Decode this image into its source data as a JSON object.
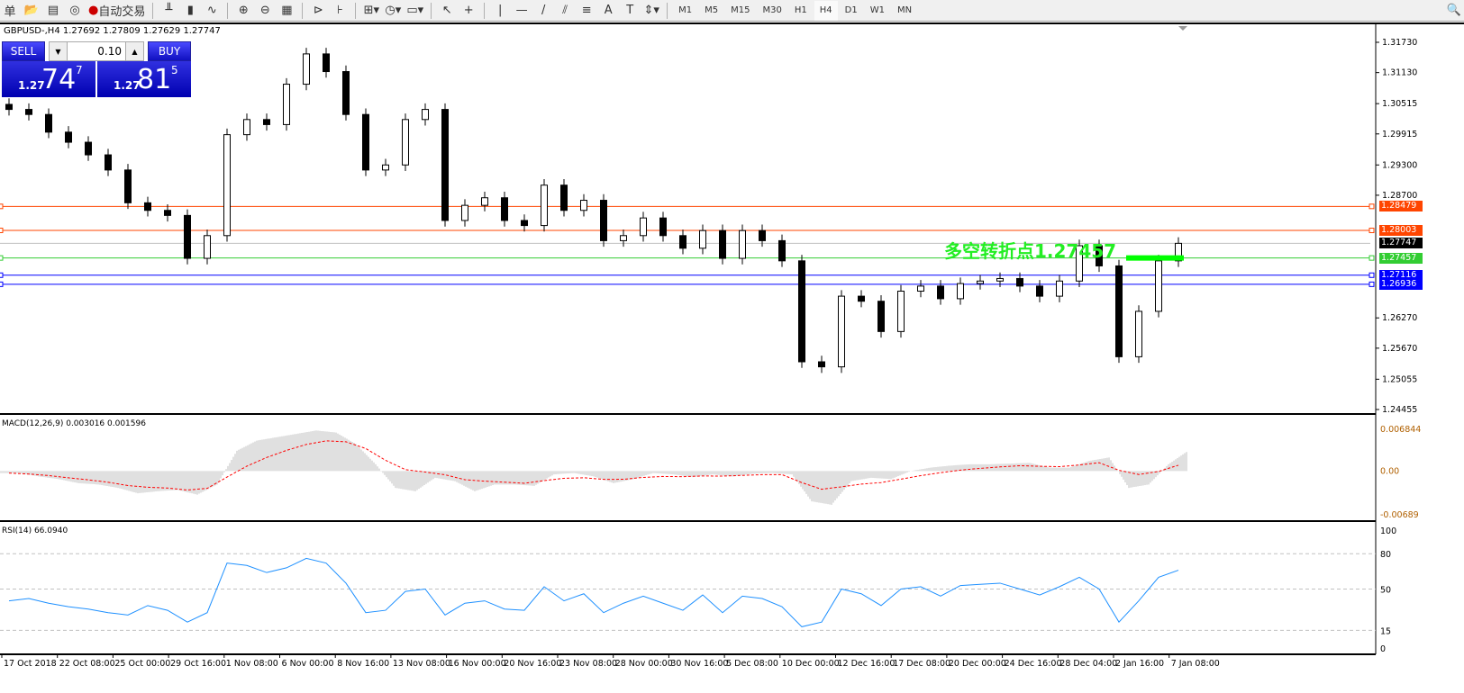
{
  "toolbar": {
    "items": [
      {
        "icon": "menu-char",
        "label": "单"
      },
      {
        "icon": "folder-icon"
      },
      {
        "icon": "terminal-icon"
      },
      {
        "icon": "signal-icon"
      },
      {
        "icon": "autotrading-icon",
        "label": "自动交易"
      },
      {
        "icon": "bar-chart-icon"
      },
      {
        "icon": "candlestick-icon"
      },
      {
        "icon": "line-chart-icon"
      },
      {
        "icon": "zoom-in-icon"
      },
      {
        "icon": "zoom-out-icon"
      },
      {
        "icon": "tile-windows-icon"
      },
      {
        "icon": "autoscroll-icon"
      },
      {
        "icon": "chart-shift-icon"
      },
      {
        "icon": "indicators-icon"
      },
      {
        "icon": "periods-clock-icon"
      },
      {
        "icon": "templates-icon"
      },
      {
        "icon": "cursor-icon"
      },
      {
        "icon": "crosshair-icon"
      },
      {
        "icon": "vertical-line-icon"
      },
      {
        "icon": "horizontal-line-icon"
      },
      {
        "icon": "trendline-icon"
      },
      {
        "icon": "equidistant-channel-icon"
      },
      {
        "icon": "fibonacci-icon"
      },
      {
        "icon": "text-icon"
      },
      {
        "icon": "text-label-icon"
      },
      {
        "icon": "arrows-icon"
      }
    ],
    "timeframes": [
      "M1",
      "M5",
      "M15",
      "M30",
      "H1",
      "H4",
      "D1",
      "W1",
      "MN"
    ],
    "active_timeframe": "H4",
    "search_icon": "search-icon"
  },
  "chart": {
    "title": "GBPUSD-,H4  1.27692 1.27809 1.27629 1.27747"
  },
  "one_click": {
    "sell": "SELL",
    "buy": "BUY",
    "lots": "0.10",
    "sell_price": {
      "a": "1.27",
      "b": "74",
      "c": "7"
    },
    "buy_price": {
      "a": "1.27",
      "b": "81",
      "c": "5"
    }
  },
  "pivot_text": "多空转折点1.27457",
  "colors": {
    "up_line": "#ff4500",
    "green": "#32cd32",
    "blue": "#0000ff",
    "bid": "#c0c0c0",
    "rsi": "#1e90ff",
    "macd_hist": "#c0c0c0",
    "macd_signal": "#ff0000"
  },
  "chart_data": [
    {
      "type": "candlestick",
      "symbol": "GBPUSD-",
      "timeframe": "H4",
      "ylim": [
        1.24455,
        1.3173
      ],
      "price_ticks": [
        "1.31730",
        "1.31130",
        "1.30515",
        "1.29915",
        "1.29300",
        "1.28700",
        "1.26270",
        "1.25670",
        "1.25055",
        "1.24455"
      ],
      "levels": [
        {
          "value": "1.28479",
          "color": "#ff4500"
        },
        {
          "value": "1.28003",
          "color": "#ff4500"
        },
        {
          "value": "1.27747",
          "color": "#000000"
        },
        {
          "value": "1.27457",
          "color": "#32cd32"
        },
        {
          "value": "1.27116",
          "color": "#0000ff"
        },
        {
          "value": "1.26936",
          "color": "#0000ff"
        }
      ],
      "closes": [
        1.304,
        1.303,
        1.2995,
        1.2975,
        1.295,
        1.292,
        1.2855,
        1.284,
        1.283,
        1.2745,
        1.279,
        1.299,
        1.302,
        1.301,
        1.309,
        1.315,
        1.3115,
        1.303,
        1.292,
        1.293,
        1.302,
        1.304,
        1.282,
        1.285,
        1.2865,
        1.282,
        1.281,
        1.289,
        1.284,
        1.286,
        1.278,
        1.279,
        1.2825,
        1.279,
        1.2765,
        1.28,
        1.2745,
        1.28,
        1.278,
        1.274,
        1.254,
        1.253,
        1.267,
        1.266,
        1.26,
        1.268,
        1.269,
        1.2665,
        1.2695,
        1.27,
        1.2705,
        1.269,
        1.267,
        1.27,
        1.277,
        1.273,
        1.255,
        1.264,
        1.274,
        1.27747
      ],
      "x_ticks": [
        "17 Oct 2018",
        "22 Oct 08:00",
        "25 Oct 00:00",
        "29 Oct 16:00",
        "1 Nov 08:00",
        "6 Nov 00:00",
        "8 Nov 16:00",
        "13 Nov 08:00",
        "16 Nov 00:00",
        "20 Nov 16:00",
        "23 Nov 08:00",
        "28 Nov 00:00",
        "30 Nov 16:00",
        "5 Dec 08:00",
        "10 Dec 00:00",
        "12 Dec 16:00",
        "17 Dec 08:00",
        "20 Dec 00:00",
        "24 Dec 16:00",
        "28 Dec 04:00",
        "2 Jan 16:00",
        "7 Jan 08:00"
      ]
    },
    {
      "type": "bar",
      "title": "MACD(12,26,9) 0.003016 0.001596",
      "ylim": [
        -0.00689,
        0.006844
      ],
      "ticks": [
        "0.006844",
        "0.00",
        "-0.00689"
      ],
      "values": [
        -0.0003,
        -0.0008,
        -0.0012,
        -0.0018,
        -0.002,
        -0.0025,
        -0.0033,
        -0.003,
        -0.0028,
        -0.0035,
        -0.002,
        0.003,
        0.0045,
        0.005,
        0.0055,
        0.006,
        0.0057,
        0.004,
        0.001,
        -0.0025,
        -0.003,
        -0.001,
        -0.0015,
        -0.003,
        -0.002,
        -0.002,
        -0.0022,
        -0.0005,
        -0.0003,
        -0.0008,
        -0.0018,
        -0.0012,
        -0.0003,
        -0.0005,
        -0.0009,
        -0.0005,
        -0.0008,
        -0.0004,
        -0.0003,
        -0.0005,
        -0.0045,
        -0.005,
        -0.0015,
        -0.001,
        -0.0012,
        0,
        0.0005,
        0.0008,
        0.001,
        0.001,
        0.0011,
        0.0012,
        0.0005,
        0.0005,
        0.0015,
        0.002,
        -0.0025,
        -0.002,
        0.001,
        0.003
      ]
    },
    {
      "type": "line",
      "title": "RSI(14) 66.0940",
      "ylim": [
        0,
        100
      ],
      "ticks": [
        "100",
        "80",
        "50",
        "15",
        "0"
      ],
      "levels": [
        80,
        50,
        15
      ],
      "values": [
        40,
        42,
        38,
        35,
        33,
        30,
        28,
        36,
        32,
        22,
        30,
        72,
        70,
        64,
        68,
        76,
        72,
        55,
        30,
        32,
        48,
        50,
        28,
        38,
        40,
        33,
        32,
        52,
        40,
        46,
        30,
        38,
        44,
        38,
        32,
        45,
        30,
        44,
        42,
        35,
        18,
        22,
        50,
        46,
        36,
        50,
        52,
        44,
        53,
        54,
        55,
        50,
        45,
        52,
        60,
        50,
        22,
        40,
        60,
        66
      ]
    }
  ]
}
